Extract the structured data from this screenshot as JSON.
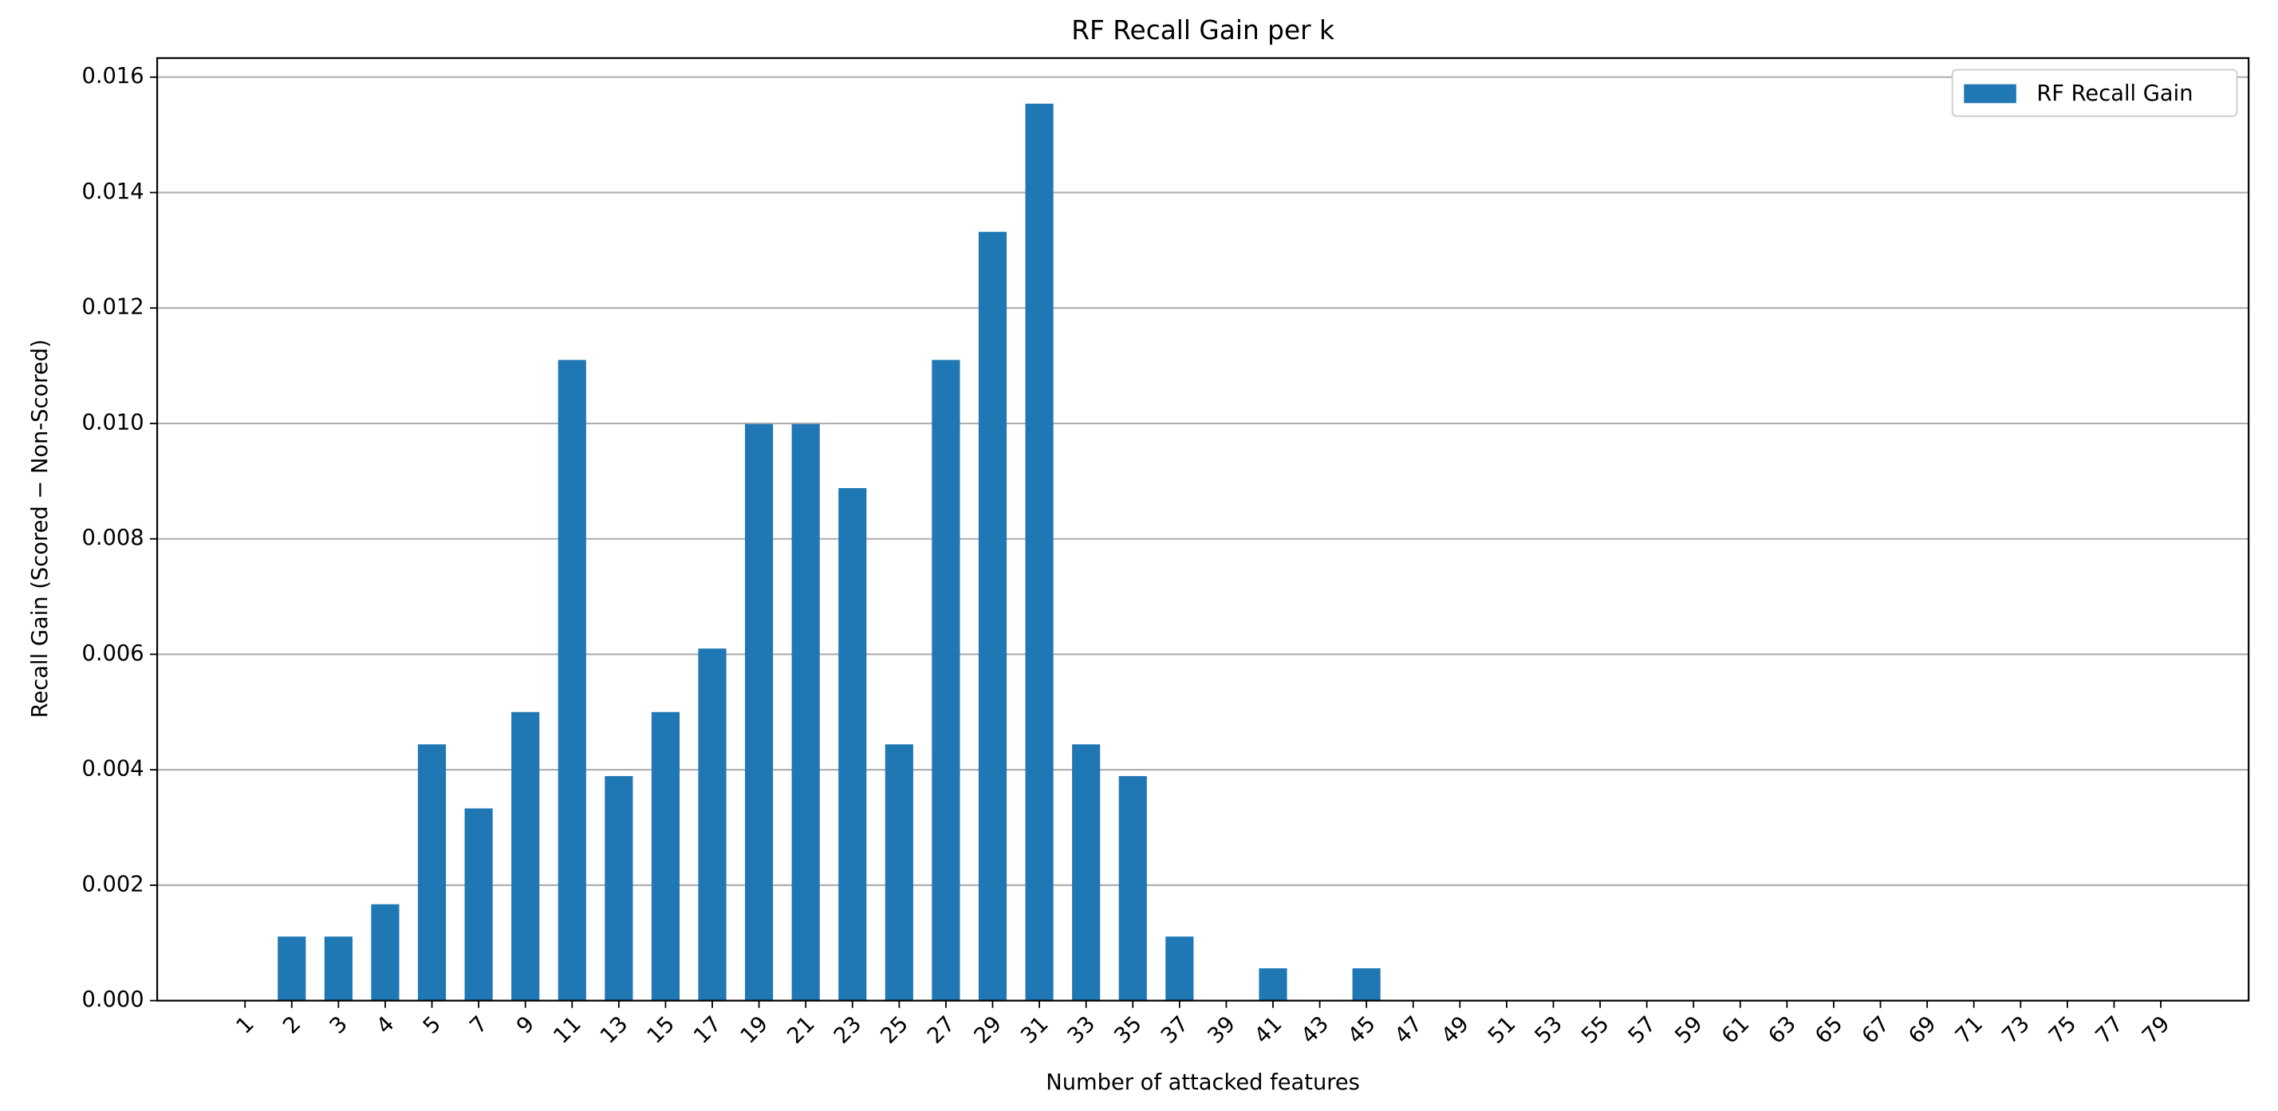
{
  "chart_data": {
    "type": "bar",
    "title": "RF Recall Gain per k",
    "xlabel": "Number of attacked features",
    "ylabel": "Recall Gain (Scored − Non-Scored)",
    "categories": [
      "1",
      "2",
      "3",
      "4",
      "5",
      "7",
      "9",
      "11",
      "13",
      "15",
      "17",
      "19",
      "21",
      "23",
      "25",
      "27",
      "29",
      "31",
      "33",
      "35",
      "37",
      "39",
      "41",
      "43",
      "45",
      "47",
      "49",
      "51",
      "53",
      "55",
      "57",
      "59",
      "61",
      "63",
      "65",
      "67",
      "69",
      "71",
      "73",
      "75",
      "77",
      "79"
    ],
    "series": [
      {
        "name": "RF Recall Gain",
        "color": "#1f77b4",
        "values": [
          0,
          0.00111,
          0.00111,
          0.00167,
          0.00444,
          0.00333,
          0.005,
          0.0111,
          0.00389,
          0.005,
          0.0061,
          0.00999,
          0.00999,
          0.00888,
          0.00444,
          0.0111,
          0.01332,
          0.01554,
          0.00444,
          0.00389,
          0.00111,
          0,
          0.00056,
          0,
          0.00056,
          0,
          0,
          0,
          0,
          0,
          0,
          0,
          0,
          0,
          0,
          0,
          0,
          0,
          0,
          0,
          0,
          0
        ]
      }
    ],
    "ylim": [
      0,
      0.01633
    ],
    "yticks": [
      {
        "value": 0,
        "label": "0.000"
      },
      {
        "value": 0.002,
        "label": "0.002"
      },
      {
        "value": 0.004,
        "label": "0.004"
      },
      {
        "value": 0.006,
        "label": "0.006"
      },
      {
        "value": 0.008,
        "label": "0.008"
      },
      {
        "value": 0.01,
        "label": "0.010"
      },
      {
        "value": 0.012,
        "label": "0.012"
      },
      {
        "value": 0.014,
        "label": "0.014"
      },
      {
        "value": 0.016,
        "label": "0.016"
      }
    ],
    "grid": true,
    "legend": "upper right"
  }
}
